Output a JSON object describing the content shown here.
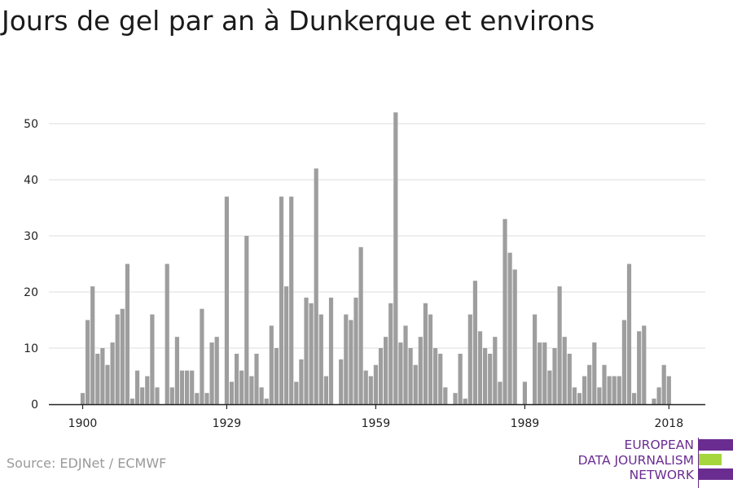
{
  "title": "Jours de gel par an à Dunkerque et environs",
  "source": "Source: EDJNet / ECMWF",
  "logo": {
    "lines": [
      "EUROPEAN",
      "DATA JOURNALISM",
      "NETWORK"
    ],
    "colors": {
      "purple": "#6b2c91",
      "green": "#a5d63b"
    }
  },
  "colors": {
    "bar": "#9e9e9e",
    "grid": "#dddddd",
    "axis": "#222222"
  },
  "chart_data": {
    "type": "bar",
    "title": "Jours de gel par an à Dunkerque et environs",
    "xlabel": "",
    "ylabel": "",
    "ylim": [
      0,
      55
    ],
    "yticks": [
      0,
      10,
      20,
      30,
      40,
      50
    ],
    "xticks": [
      1900,
      1929,
      1959,
      1989,
      2018
    ],
    "grid": true,
    "x": [
      1900,
      1901,
      1902,
      1903,
      1904,
      1905,
      1906,
      1907,
      1908,
      1909,
      1910,
      1911,
      1912,
      1913,
      1914,
      1915,
      1916,
      1917,
      1918,
      1919,
      1920,
      1921,
      1922,
      1923,
      1924,
      1925,
      1926,
      1927,
      1928,
      1929,
      1930,
      1931,
      1932,
      1933,
      1934,
      1935,
      1936,
      1937,
      1938,
      1939,
      1940,
      1941,
      1942,
      1943,
      1944,
      1945,
      1946,
      1947,
      1948,
      1949,
      1950,
      1951,
      1952,
      1953,
      1954,
      1955,
      1956,
      1957,
      1958,
      1959,
      1960,
      1961,
      1962,
      1963,
      1964,
      1965,
      1966,
      1967,
      1968,
      1969,
      1970,
      1971,
      1972,
      1973,
      1974,
      1975,
      1976,
      1977,
      1978,
      1979,
      1980,
      1981,
      1982,
      1983,
      1984,
      1985,
      1986,
      1987,
      1988,
      1989,
      1990,
      1991,
      1992,
      1993,
      1994,
      1995,
      1996,
      1997,
      1998,
      1999,
      2000,
      2001,
      2002,
      2003,
      2004,
      2005,
      2006,
      2007,
      2008,
      2009,
      2010,
      2011,
      2012,
      2013,
      2014,
      2015,
      2016,
      2017,
      2018
    ],
    "values": [
      2,
      15,
      21,
      9,
      10,
      7,
      11,
      16,
      17,
      25,
      1,
      6,
      3,
      5,
      16,
      3,
      0,
      25,
      3,
      12,
      6,
      6,
      6,
      2,
      17,
      2,
      11,
      12,
      0,
      37,
      4,
      9,
      6,
      30,
      5,
      9,
      3,
      1,
      14,
      10,
      37,
      21,
      37,
      4,
      8,
      19,
      18,
      42,
      16,
      5,
      19,
      0,
      8,
      16,
      15,
      19,
      28,
      6,
      5,
      7,
      10,
      12,
      18,
      52,
      11,
      14,
      10,
      7,
      12,
      18,
      16,
      10,
      9,
      3,
      0,
      2,
      9,
      1,
      16,
      22,
      13,
      10,
      9,
      12,
      4,
      33,
      27,
      24,
      0,
      4,
      0,
      16,
      11,
      11,
      6,
      10,
      21,
      12,
      9,
      3,
      2,
      5,
      7,
      11,
      3,
      7,
      5,
      5,
      5,
      15,
      25,
      2,
      13,
      14,
      0,
      1,
      3,
      7,
      5
    ]
  }
}
